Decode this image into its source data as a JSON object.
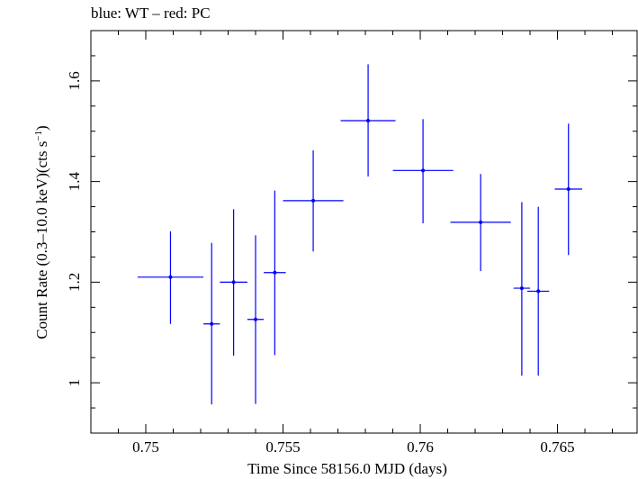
{
  "chart_data": {
    "type": "scatter",
    "title": "blue: WT – red: PC",
    "xlabel": "Time Since 58156.0 MJD (days)",
    "ylabel": "Count Rate (0.3–10.0 keV)(cts s",
    "ylabel_sup": "−1",
    "ylabel_end": ")",
    "xlim": [
      0.748,
      0.7679
    ],
    "ylim": [
      0.9,
      1.7
    ],
    "x_ticks": [
      0.75,
      0.755,
      0.76,
      0.765
    ],
    "x_tick_labels": [
      "0.75",
      "0.755",
      "0.76",
      "0.765"
    ],
    "y_ticks": [
      1.0,
      1.2,
      1.4,
      1.6
    ],
    "y_tick_labels": [
      "1",
      "1.2",
      "1.4",
      "1.6"
    ],
    "grid": false,
    "series": [
      {
        "name": "WT",
        "color": "#0000ff",
        "points": [
          {
            "x": 0.7509,
            "xerr_lo": 0.0012,
            "xerr_hi": 0.0012,
            "y": 1.21,
            "yerr_lo": 0.093,
            "yerr_hi": 0.091
          },
          {
            "x": 0.7524,
            "xerr_lo": 0.0003,
            "xerr_hi": 0.0003,
            "y": 1.117,
            "yerr_lo": 0.16,
            "yerr_hi": 0.161
          },
          {
            "x": 0.7532,
            "xerr_lo": 0.0005,
            "xerr_hi": 0.0005,
            "y": 1.2,
            "yerr_lo": 0.146,
            "yerr_hi": 0.145
          },
          {
            "x": 0.754,
            "xerr_lo": 0.0003,
            "xerr_hi": 0.0003,
            "y": 1.126,
            "yerr_lo": 0.168,
            "yerr_hi": 0.167
          },
          {
            "x": 0.7547,
            "xerr_lo": 0.0004,
            "xerr_hi": 0.0004,
            "y": 1.219,
            "yerr_lo": 0.164,
            "yerr_hi": 0.163
          },
          {
            "x": 0.7561,
            "xerr_lo": 0.0011,
            "xerr_hi": 0.0011,
            "y": 1.362,
            "yerr_lo": 0.101,
            "yerr_hi": 0.1
          },
          {
            "x": 0.7581,
            "xerr_lo": 0.001,
            "xerr_hi": 0.001,
            "y": 1.521,
            "yerr_lo": 0.111,
            "yerr_hi": 0.112
          },
          {
            "x": 0.7601,
            "xerr_lo": 0.0011,
            "xerr_hi": 0.0011,
            "y": 1.422,
            "yerr_lo": 0.105,
            "yerr_hi": 0.102
          },
          {
            "x": 0.7622,
            "xerr_lo": 0.0011,
            "xerr_hi": 0.0011,
            "y": 1.319,
            "yerr_lo": 0.097,
            "yerr_hi": 0.096
          },
          {
            "x": 0.7637,
            "xerr_lo": 0.0003,
            "xerr_hi": 0.0003,
            "y": 1.188,
            "yerr_lo": 0.174,
            "yerr_hi": 0.171
          },
          {
            "x": 0.7643,
            "xerr_lo": 0.0004,
            "xerr_hi": 0.0004,
            "y": 1.182,
            "yerr_lo": 0.168,
            "yerr_hi": 0.168
          },
          {
            "x": 0.7654,
            "xerr_lo": 0.0005,
            "xerr_hi": 0.0005,
            "y": 1.385,
            "yerr_lo": 0.131,
            "yerr_hi": 0.13
          }
        ]
      }
    ]
  }
}
